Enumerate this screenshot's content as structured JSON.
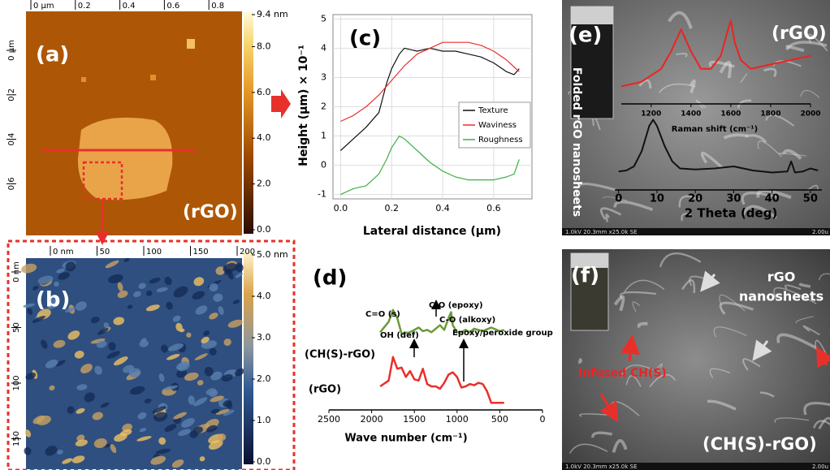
{
  "chart_data": [
    {
      "type": "line",
      "panel_label": "(c)",
      "xlabel": "Lateral distance (µm)",
      "ylabel": "Height (µm) × 10⁻¹",
      "xlim": [
        -0.03,
        0.75
      ],
      "ylim": [
        -1.15,
        5.15
      ],
      "xticks": [
        {
          "value": 0,
          "label": "0.0"
        },
        0.2,
        0.4,
        0.6
      ],
      "yticks": [
        -1,
        0,
        1,
        2,
        3,
        4,
        5
      ],
      "grid": true,
      "legend": "right",
      "series": [
        {
          "name": "Texture",
          "color": "#111111",
          "x": [
            0,
            0.05,
            0.1,
            0.15,
            0.18,
            0.2,
            0.23,
            0.25,
            0.3,
            0.35,
            0.4,
            0.45,
            0.5,
            0.55,
            0.6,
            0.65,
            0.68,
            0.7
          ],
          "values": [
            0.5,
            0.9,
            1.3,
            1.8,
            2.8,
            3.3,
            3.8,
            4.0,
            3.9,
            4.0,
            3.9,
            3.9,
            3.8,
            3.7,
            3.5,
            3.2,
            3.1,
            3.3
          ]
        },
        {
          "name": "Waviness",
          "color": "#e8302a",
          "x": [
            0,
            0.05,
            0.1,
            0.15,
            0.2,
            0.25,
            0.3,
            0.35,
            0.4,
            0.45,
            0.5,
            0.55,
            0.6,
            0.65,
            0.7
          ],
          "values": [
            1.5,
            1.7,
            2.0,
            2.4,
            2.9,
            3.4,
            3.8,
            4.0,
            4.2,
            4.2,
            4.2,
            4.1,
            3.9,
            3.6,
            3.2
          ]
        },
        {
          "name": "Roughness",
          "color": "#3cb043",
          "x": [
            0,
            0.05,
            0.1,
            0.15,
            0.18,
            0.2,
            0.23,
            0.25,
            0.3,
            0.35,
            0.4,
            0.45,
            0.5,
            0.55,
            0.6,
            0.65,
            0.68,
            0.7
          ],
          "values": [
            -1.0,
            -0.8,
            -0.7,
            -0.3,
            0.2,
            0.6,
            1.0,
            0.9,
            0.5,
            0.1,
            -0.2,
            -0.4,
            -0.5,
            -0.5,
            -0.5,
            -0.4,
            -0.3,
            0.2
          ]
        }
      ]
    },
    {
      "type": "line",
      "panel_label": "(d)",
      "xlabel": "Wave number (cm⁻¹)",
      "xlim": [
        2500,
        0
      ],
      "ylim": [
        0,
        10
      ],
      "xticks": [
        2500,
        2000,
        1500,
        1000,
        500,
        0
      ],
      "annotations": [
        "C=O (s)",
        "OH (def)",
        "C-O (epoxy)",
        "C-O (alkoxy)",
        "Epoxy/peroxide group"
      ],
      "series": [
        {
          "name": "(CH(S)-rGO)",
          "color": "#6a9a3a",
          "x": [
            1900,
            1800,
            1750,
            1700,
            1650,
            1550,
            1450,
            1400,
            1350,
            1300,
            1250,
            1200,
            1150,
            1100,
            1070,
            1050,
            1000,
            950,
            900,
            850,
            800,
            700,
            600,
            500,
            450
          ],
          "values": [
            6.6,
            7.5,
            8.5,
            7.8,
            6.5,
            6.6,
            7.0,
            6.7,
            6.8,
            6.6,
            6.9,
            7.2,
            6.8,
            7.8,
            8.3,
            7.2,
            6.6,
            6.6,
            6.8,
            6.6,
            6.9,
            6.7,
            7.0,
            6.7,
            6.8
          ]
        },
        {
          "name": "(rGO)",
          "color": "#e8302a",
          "x": [
            1900,
            1800,
            1750,
            1700,
            1650,
            1600,
            1550,
            1500,
            1450,
            1400,
            1350,
            1300,
            1250,
            1200,
            1150,
            1100,
            1050,
            1000,
            950,
            900,
            850,
            800,
            750,
            700,
            650,
            600,
            550,
            500,
            450
          ],
          "values": [
            2.0,
            2.5,
            4.5,
            3.5,
            3.6,
            2.8,
            3.3,
            2.6,
            2.5,
            3.5,
            2.2,
            2.0,
            2.0,
            1.8,
            2.3,
            3.0,
            3.2,
            2.8,
            1.9,
            2.0,
            2.2,
            2.1,
            2.3,
            2.2,
            1.6,
            0.6,
            0.6,
            0.6,
            0.6
          ]
        }
      ]
    },
    {
      "type": "line",
      "xlabel": "2 Theta (deg)",
      "xlim": [
        -1,
        53
      ],
      "ylim": [
        0,
        8
      ],
      "xticks": [
        0,
        10,
        20,
        30,
        40,
        50
      ],
      "series": [
        {
          "color": "#111111",
          "x": [
            0,
            2,
            4,
            6,
            8,
            9,
            10,
            12,
            14,
            16,
            20,
            25,
            30,
            35,
            40,
            44,
            45,
            46,
            48,
            50,
            52
          ],
          "values": [
            1.5,
            1.6,
            2.0,
            3.5,
            6.0,
            6.6,
            6.0,
            4.0,
            2.5,
            1.8,
            1.7,
            1.8,
            2.0,
            1.6,
            1.4,
            1.5,
            2.5,
            1.4,
            1.5,
            1.8,
            1.6
          ]
        }
      ]
    },
    {
      "type": "line",
      "xlabel": "Raman shift (cm⁻¹)",
      "xlim": [
        1050,
        2000
      ],
      "ylim": [
        0,
        10
      ],
      "xticks": [
        1200,
        1400,
        1600,
        1800,
        2000
      ],
      "series": [
        {
          "color": "#ee2222",
          "x": [
            1050,
            1150,
            1250,
            1300,
            1350,
            1400,
            1450,
            1500,
            1550,
            1580,
            1600,
            1620,
            1650,
            1700,
            1800,
            1900,
            2000
          ],
          "values": [
            2,
            2.5,
            4,
            6,
            8.5,
            6,
            4,
            4,
            5.5,
            8,
            9.5,
            7,
            5,
            4,
            4.5,
            5,
            5.5
          ]
        }
      ]
    }
  ],
  "images": [
    {
      "panel_label": "(a)",
      "sample": "(rGO)",
      "top_ticks": [
        {
          "value": 0,
          "label": "0 µm"
        },
        0.2,
        0.4,
        0.6,
        0.8
      ],
      "left_ticks": [
        {
          "value": 0,
          "label": "0 µm"
        },
        0.2,
        0.4,
        0.6
      ],
      "colorbar": [
        {
          "value": 9.4,
          "label": "9.4 nm"
        },
        {
          "value": 8,
          "label": "8.0"
        },
        {
          "value": 6,
          "label": "6.0"
        },
        {
          "value": 4,
          "label": "4.0"
        },
        {
          "value": 2,
          "label": "2.0"
        },
        {
          "value": 0,
          "label": "0.0"
        }
      ]
    },
    {
      "panel_label": "(b)",
      "top_ticks": [
        {
          "value": 0,
          "label": "0 nm"
        },
        50,
        100,
        150,
        200
      ],
      "left_ticks": [
        {
          "value": 0,
          "label": "0 nm"
        },
        50,
        100,
        150
      ],
      "colorbar": [
        {
          "value": 5,
          "label": "5.0 nm"
        },
        {
          "value": 4,
          "label": "4.0"
        },
        {
          "value": 3,
          "label": "3.0"
        },
        {
          "value": 2,
          "label": "2.0"
        },
        {
          "value": 1,
          "label": "1.0"
        },
        {
          "value": 0,
          "label": "0.0"
        }
      ]
    },
    {
      "panel_label": "(e)",
      "sample": "(rGO)",
      "caption": "Folded rGO nanosheets",
      "sem_info": "1.0kV 20.3mm x25.0k SE",
      "scale": "2.00u"
    },
    {
      "panel_label": "(f)",
      "labels": [
        "rGO",
        "nanosheets",
        "Infused CH(S)",
        "(CH(S)-rGO)"
      ],
      "sem_info": "1.0kV 20.3mm x25.0k SE",
      "scale": "2.00u"
    }
  ]
}
